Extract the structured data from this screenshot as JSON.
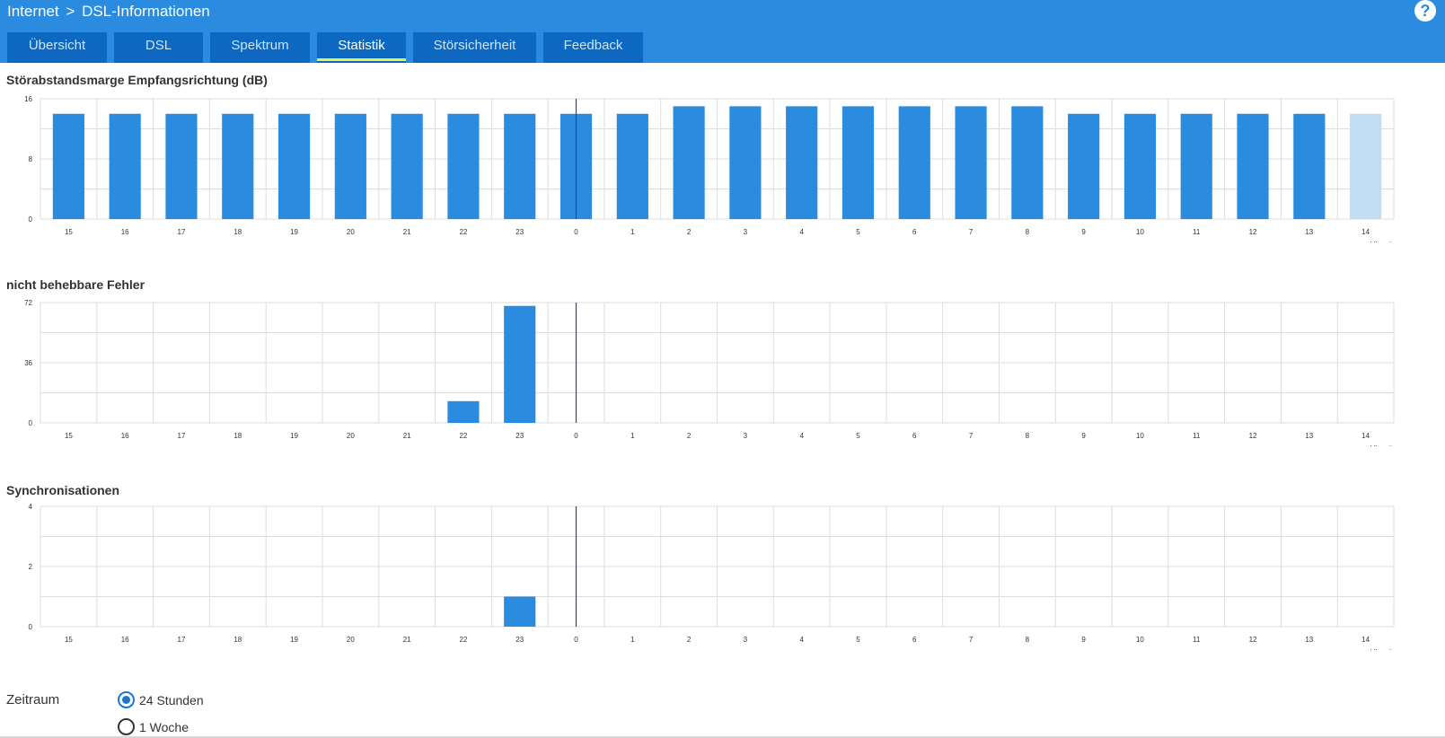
{
  "header": {
    "breadcrumb_root": "Internet",
    "breadcrumb_sep": ">",
    "breadcrumb_page": "DSL-Informationen",
    "help_label": "?"
  },
  "tabs": [
    {
      "label": "Übersicht",
      "active": false
    },
    {
      "label": "DSL",
      "active": false
    },
    {
      "label": "Spektrum",
      "active": false
    },
    {
      "label": "Statistik",
      "active": true
    },
    {
      "label": "Störsicherheit",
      "active": false
    },
    {
      "label": "Feedback",
      "active": false
    }
  ],
  "colors": {
    "header": "#2a8bdf",
    "tab": "#0c68c0",
    "tab_active_underline": "#dff54a",
    "bar": "#2a8bdf",
    "bar_current": "#c2ddf3",
    "grid": "#dddddd",
    "now_line": "#1a4f86"
  },
  "chart_data": [
    {
      "type": "bar",
      "title": "Störabstandsmarge Empfangsrichtung (dB)",
      "xlabel": "Uhrzeit",
      "categories": [
        "15",
        "16",
        "17",
        "18",
        "19",
        "20",
        "21",
        "22",
        "23",
        "0",
        "1",
        "2",
        "3",
        "4",
        "5",
        "6",
        "7",
        "8",
        "9",
        "10",
        "11",
        "12",
        "13",
        "14"
      ],
      "values": [
        14,
        14,
        14,
        14,
        14,
        14,
        14,
        14,
        14,
        14,
        14,
        15,
        15,
        15,
        15,
        15,
        15,
        15,
        14,
        14,
        14,
        14,
        14,
        14
      ],
      "ylim": [
        0,
        16
      ],
      "yticks": [
        "0",
        "8",
        "16"
      ],
      "grid": true,
      "current_index": 23,
      "now_marker": "0"
    },
    {
      "type": "bar",
      "title": "nicht behebbare Fehler",
      "xlabel": "Uhrzeit",
      "categories": [
        "15",
        "16",
        "17",
        "18",
        "19",
        "20",
        "21",
        "22",
        "23",
        "0",
        "1",
        "2",
        "3",
        "4",
        "5",
        "6",
        "7",
        "8",
        "9",
        "10",
        "11",
        "12",
        "13",
        "14"
      ],
      "values": [
        0,
        0,
        0,
        0,
        0,
        0,
        0,
        13,
        70,
        0,
        0,
        0,
        0,
        0,
        0,
        0,
        0,
        0,
        0,
        0,
        0,
        0,
        0,
        0
      ],
      "ylim": [
        0,
        72
      ],
      "yticks": [
        "0",
        "36",
        "72"
      ],
      "grid": true,
      "now_marker": "0"
    },
    {
      "type": "bar",
      "title": "Synchronisationen",
      "xlabel": "Uhrzeit",
      "categories": [
        "15",
        "16",
        "17",
        "18",
        "19",
        "20",
        "21",
        "22",
        "23",
        "0",
        "1",
        "2",
        "3",
        "4",
        "5",
        "6",
        "7",
        "8",
        "9",
        "10",
        "11",
        "12",
        "13",
        "14"
      ],
      "values": [
        0,
        0,
        0,
        0,
        0,
        0,
        0,
        0,
        1,
        0,
        0,
        0,
        0,
        0,
        0,
        0,
        0,
        0,
        0,
        0,
        0,
        0,
        0,
        0
      ],
      "ylim": [
        0,
        4
      ],
      "yticks": [
        "0",
        "2",
        "4"
      ],
      "grid": true,
      "now_marker": "0"
    }
  ],
  "zeitraum": {
    "label": "Zeitraum",
    "options": [
      {
        "label": "24 Stunden",
        "checked": true
      },
      {
        "label": "1 Woche",
        "checked": false
      }
    ]
  }
}
